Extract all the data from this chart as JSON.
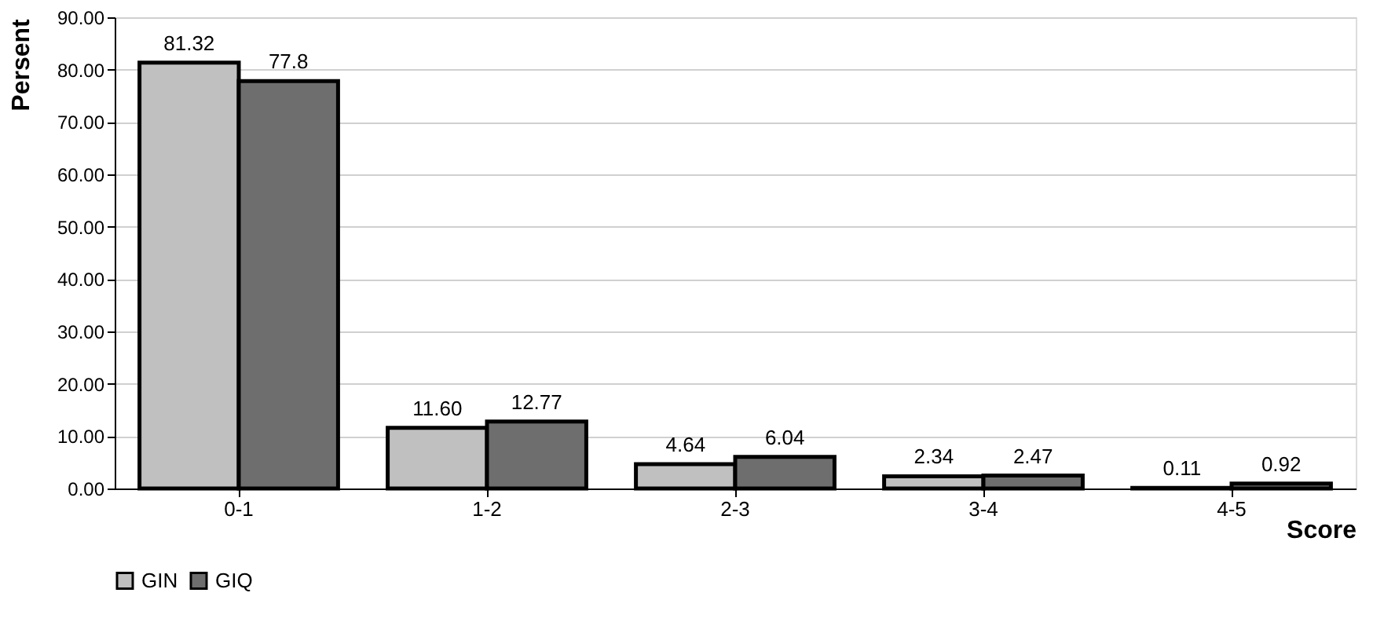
{
  "chart_data": {
    "type": "bar",
    "xlabel": "Score",
    "ylabel": "Persent",
    "categories": [
      "0-1",
      "1-2",
      "2-3",
      "3-4",
      "4-5"
    ],
    "series": [
      {
        "name": "GIN",
        "color": "#c0c0c0",
        "values": [
          81.32,
          11.6,
          4.64,
          2.34,
          0.11
        ],
        "value_labels": [
          "81.32",
          "11.60",
          "4.64",
          "2.34",
          "0.11"
        ]
      },
      {
        "name": "GIQ",
        "color": "#6e6e6e",
        "values": [
          77.8,
          12.77,
          6.04,
          2.47,
          0.92
        ],
        "value_labels": [
          "77.8",
          "12.77",
          "6.04",
          "2.47",
          "0.92"
        ]
      }
    ],
    "ylim": [
      0,
      90
    ],
    "yticks": [
      {
        "value": 0,
        "label": "0.00"
      },
      {
        "value": 10,
        "label": "10.00"
      },
      {
        "value": 20,
        "label": "20.00"
      },
      {
        "value": 30,
        "label": "30.00"
      },
      {
        "value": 40,
        "label": "40.00"
      },
      {
        "value": 50,
        "label": "50.00"
      },
      {
        "value": 60,
        "label": "60.00"
      },
      {
        "value": 70,
        "label": "70.00"
      },
      {
        "value": 80,
        "label": "80.00"
      },
      {
        "value": 90,
        "label": "90.00"
      }
    ],
    "grid": "y",
    "legend": "bottom"
  }
}
